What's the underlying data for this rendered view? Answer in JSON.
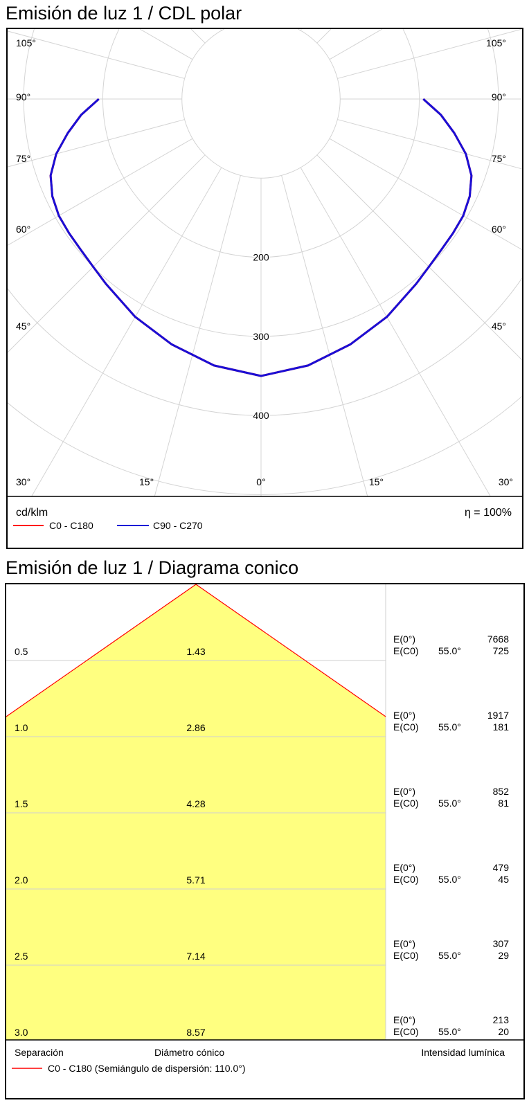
{
  "polar": {
    "title": "Emisión de luz 1 / CDL polar",
    "unit_label": "cd/klm",
    "efficiency": "η = 100%",
    "legend": [
      {
        "label": "C0 - C180",
        "color": "#ff0000"
      },
      {
        "label": "C90 - C270",
        "color": "#1a0fd6"
      }
    ]
  },
  "cone": {
    "title": "Emisión de luz 1 / Diagrama conico",
    "footer_labels": {
      "separation": "Separación",
      "diameter": "Diámetro cónico",
      "intensity": "Intensidad lumínica"
    },
    "legend_text": "C0 - C180 (Semiángulo de dispersión: 110.0°)",
    "legend_color": "#ff0000",
    "fill_color": "#ffff80"
  },
  "chart_data": [
    {
      "type": "polar",
      "title": "Emisión de luz 1 / CDL polar",
      "unit": "cd/klm",
      "radial_ticks": [
        200,
        300,
        400
      ],
      "angle_labels_left": [
        "105°",
        "90°",
        "75°",
        "60°",
        "45°",
        "30°",
        "15°"
      ],
      "angle_labels_right": [
        "105°",
        "90°",
        "75°",
        "60°",
        "45°",
        "30°",
        "15°"
      ],
      "angle_label_bottom": "0°",
      "series": [
        {
          "name": "C90 - C270",
          "color": "#1a0fd6",
          "angles_deg": [
            0,
            10,
            20,
            30,
            40,
            45,
            50,
            55,
            60,
            65,
            70,
            75,
            80,
            85,
            90
          ],
          "values": [
            350,
            342,
            330,
            318,
            305,
            300,
            297,
            296,
            295,
            291,
            283,
            268,
            248,
            228,
            205
          ]
        },
        {
          "name": "C0 - C180",
          "color": "#ff0000",
          "angles_deg": [
            0,
            10,
            20,
            30,
            40,
            45,
            50,
            55,
            60,
            65,
            70,
            75,
            80,
            85,
            90
          ],
          "values": [
            350,
            342,
            330,
            318,
            305,
            300,
            297,
            296,
            295,
            291,
            283,
            268,
            248,
            228,
            205
          ]
        }
      ],
      "efficiency": "η = 100%"
    },
    {
      "type": "table",
      "title": "Emisión de luz 1 / Diagrama conico",
      "half_angle_deg": 110.0,
      "rows": [
        {
          "separation": "0.5",
          "diameter": "1.43",
          "e0_label": "E(0°)",
          "e0": "7668",
          "ec0_label": "E(C0)",
          "angle": "55.0°",
          "ec0": "725"
        },
        {
          "separation": "1.0",
          "diameter": "2.86",
          "e0_label": "E(0°)",
          "e0": "1917",
          "ec0_label": "E(C0)",
          "angle": "55.0°",
          "ec0": "181"
        },
        {
          "separation": "1.5",
          "diameter": "4.28",
          "e0_label": "E(0°)",
          "e0": "852",
          "ec0_label": "E(C0)",
          "angle": "55.0°",
          "ec0": "81"
        },
        {
          "separation": "2.0",
          "diameter": "5.71",
          "e0_label": "E(0°)",
          "e0": "479",
          "ec0_label": "E(C0)",
          "angle": "55.0°",
          "ec0": "45"
        },
        {
          "separation": "2.5",
          "diameter": "7.14",
          "e0_label": "E(0°)",
          "e0": "307",
          "ec0_label": "E(C0)",
          "angle": "55.0°",
          "ec0": "29"
        },
        {
          "separation": "3.0",
          "diameter": "8.57",
          "e0_label": "E(0°)",
          "e0": "213",
          "ec0_label": "E(C0)",
          "angle": "55.0°",
          "ec0": "20"
        }
      ]
    }
  ]
}
